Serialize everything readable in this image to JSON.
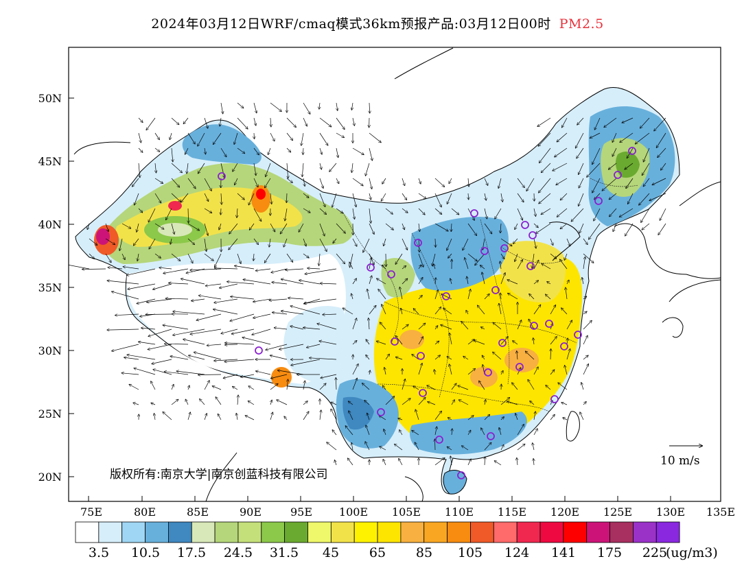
{
  "title": {
    "main": "2024年03月12日WRF/cmaq模式36km预报产品:03月12日00时",
    "pollutant": "PM2.5"
  },
  "map": {
    "lon_labels": [
      "75E",
      "80E",
      "85E",
      "90E",
      "95E",
      "100E",
      "105E",
      "110E",
      "115E",
      "120E",
      "125E",
      "130E",
      "135E"
    ],
    "lat_labels": [
      "50N",
      "45N",
      "40N",
      "35N",
      "30N",
      "25N",
      "20N"
    ],
    "copyright": "版权所有:南京大学|南京创蓝科技有限公司",
    "wind_reference": "10 m/s"
  },
  "colorbar": {
    "colors": [
      "#ffffff",
      "#d6eefa",
      "#9fd6f4",
      "#68b0dc",
      "#3f88c0",
      "#d9e8b8",
      "#b5d67a",
      "#c4e07a",
      "#8cc84a",
      "#6aaa30",
      "#eef86a",
      "#f2e24a",
      "#fff200",
      "#fde500",
      "#f8b040",
      "#f9a622",
      "#f78c10",
      "#ef5a28",
      "#ff6a6a",
      "#f02850",
      "#ee0a40",
      "#ff0000",
      "#cc1478",
      "#a83060",
      "#9a32c8",
      "#8a28e0"
    ],
    "labels": [
      "3.5",
      "10.5",
      "17.5",
      "24.5",
      "31.5",
      "45",
      "65",
      "85",
      "105",
      "124",
      "141",
      "175",
      "225"
    ],
    "unit": "(ug/m3)"
  },
  "colors": {
    "clean": "#ffffff",
    "low": "#68b0dc",
    "mid": "#b5d67a",
    "high": "#fff200",
    "veryhigh": "#ef5a28",
    "station_marker": "#8a20d0"
  },
  "stations": 37
}
